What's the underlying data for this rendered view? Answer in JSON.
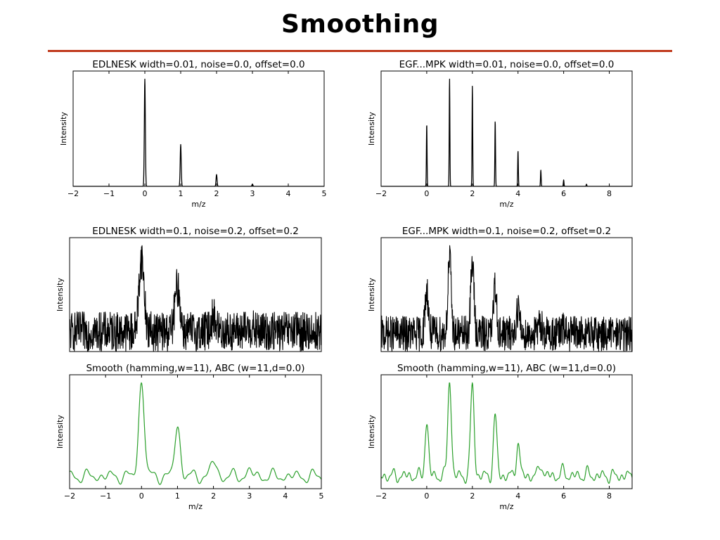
{
  "slide": {
    "title": "Smoothing",
    "accent_color": "#c0391b"
  },
  "chart_data": [
    {
      "type": "line",
      "title": "EDLNESK width=0.01, noise=0.0, offset=0.0",
      "xlabel": "m/z",
      "ylabel": "Intensity",
      "xlim": [
        -2,
        5
      ],
      "xticks": [
        -2,
        -1,
        0,
        1,
        2,
        3,
        4,
        5
      ],
      "yticks_shown": false,
      "line_color": "#000000",
      "series": [
        {
          "peak_positions": [
            0,
            1,
            2,
            3
          ],
          "peak_heights": [
            1.0,
            0.39,
            0.11,
            0.02
          ]
        }
      ]
    },
    {
      "type": "line",
      "title": "EGF...MPK width=0.01, noise=0.0, offset=0.0",
      "xlabel": "m/z",
      "ylabel": "Intensity",
      "xlim": [
        -2,
        9
      ],
      "xticks": [
        -2,
        0,
        2,
        4,
        6,
        8
      ],
      "yticks_shown": false,
      "line_color": "#000000",
      "series": [
        {
          "peak_positions": [
            0,
            1,
            2,
            3,
            4,
            5,
            6,
            7
          ],
          "peak_heights": [
            0.58,
            1.0,
            0.93,
            0.61,
            0.33,
            0.15,
            0.06,
            0.02
          ]
        }
      ]
    },
    {
      "type": "line",
      "title": "EDLNESK width=0.1, noise=0.2, offset=0.2",
      "xlabel": "",
      "ylabel": "Intensity",
      "xlim": [
        -2,
        5
      ],
      "xticks": [],
      "yticks_shown": false,
      "line_color": "#000000",
      "noise": 0.2,
      "offset": 0.2,
      "series": [
        {
          "peak_positions": [
            0,
            1,
            2,
            3
          ],
          "peak_heights": [
            0.62,
            0.38,
            0.12,
            0.03
          ]
        }
      ]
    },
    {
      "type": "line",
      "title": "EGF...MPK width=0.1, noise=0.2, offset=0.2",
      "xlabel": "",
      "ylabel": "Intensity",
      "xlim": [
        -2,
        9
      ],
      "xticks": [],
      "yticks_shown": false,
      "line_color": "#000000",
      "noise": 0.2,
      "offset": 0.2,
      "series": [
        {
          "peak_positions": [
            0,
            1,
            2,
            3,
            4,
            5,
            6,
            7
          ],
          "peak_heights": [
            0.42,
            0.72,
            0.68,
            0.44,
            0.24,
            0.1,
            0.04,
            0.02
          ]
        }
      ]
    },
    {
      "type": "line",
      "title": "Smooth (hamming,w=11), ABC (w=11,d=0.0)",
      "xlabel": "m/z",
      "ylabel": "Intensity",
      "xlim": [
        -2,
        5
      ],
      "xticks": [
        -2,
        -1,
        0,
        1,
        2,
        3,
        4,
        5
      ],
      "yticks_shown": false,
      "line_color": "#2ca02c",
      "series": [
        {
          "peak_positions": [
            0,
            1,
            2,
            3
          ],
          "peak_heights": [
            0.76,
            0.4,
            0.12,
            0.04
          ]
        }
      ]
    },
    {
      "type": "line",
      "title": "Smooth (hamming,w=11), ABC (w=11,d=0.0)",
      "xlabel": "m/z",
      "ylabel": "Intensity",
      "xlim": [
        -2,
        9
      ],
      "xticks": [
        -2,
        0,
        2,
        4,
        6,
        8
      ],
      "yticks_shown": false,
      "line_color": "#2ca02c",
      "series": [
        {
          "peak_positions": [
            0,
            1,
            2,
            3,
            4,
            5,
            6,
            7
          ],
          "peak_heights": [
            0.42,
            0.76,
            0.72,
            0.46,
            0.26,
            0.1,
            0.04,
            0.02
          ]
        }
      ]
    }
  ]
}
